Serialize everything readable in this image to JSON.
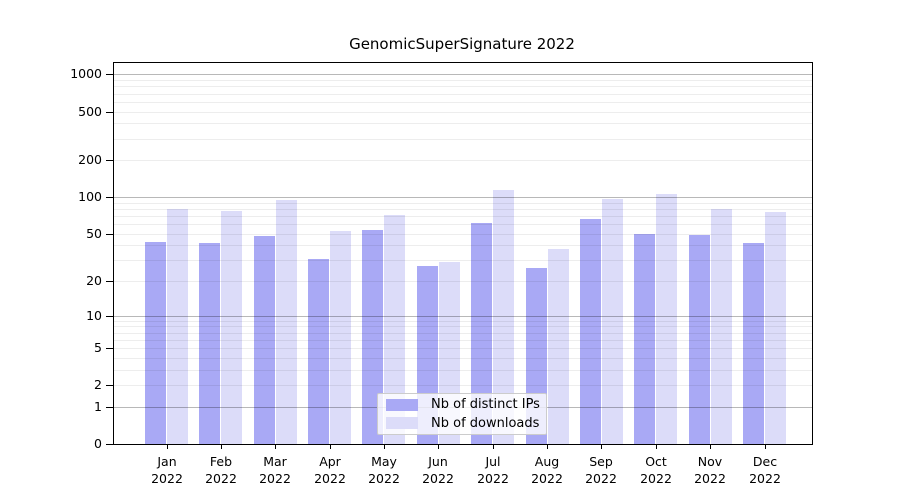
{
  "chart_data": {
    "type": "bar",
    "title": "GenomicSuperSignature 2022",
    "categories": [
      "Jan",
      "Feb",
      "Mar",
      "Apr",
      "May",
      "Jun",
      "Jul",
      "Aug",
      "Sep",
      "Oct",
      "Nov",
      "Dec"
    ],
    "year_label": "2022",
    "series": [
      {
        "name": "Nb of distinct IPs",
        "color": "#a9a9f5",
        "values": [
          43,
          42,
          48,
          31,
          54,
          27,
          61,
          26,
          66,
          50,
          49,
          42
        ]
      },
      {
        "name": "Nb of downloads",
        "color": "#dcdcf9",
        "values": [
          80,
          77,
          94,
          53,
          72,
          29,
          115,
          37,
          96,
          106,
          80,
          76
        ]
      }
    ],
    "xlabel": "",
    "ylabel": "",
    "y_axis": {
      "scale": "log10(v+1)",
      "tick_values": [
        0,
        1,
        2,
        5,
        10,
        20,
        50,
        100,
        200,
        500,
        1000
      ],
      "major_gridlines": [
        1,
        10,
        100,
        1000
      ],
      "minor_gridlines": [
        2,
        3,
        4,
        5,
        6,
        7,
        8,
        9,
        20,
        30,
        40,
        50,
        60,
        70,
        80,
        90,
        200,
        300,
        400,
        500,
        600,
        700,
        800,
        900
      ],
      "ylim": [
        0,
        1240
      ]
    },
    "grid": true,
    "legend_position": "lower center"
  }
}
